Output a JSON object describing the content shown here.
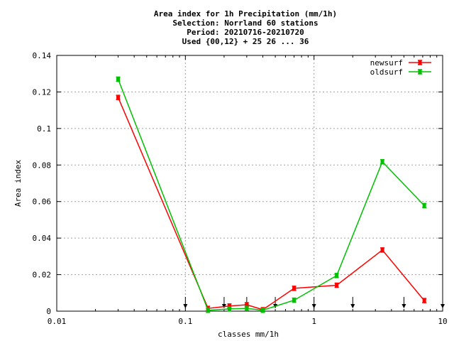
{
  "chart_data": {
    "type": "line",
    "title_lines": [
      "Area index  for 1h Precipitation (mm/1h)",
      "Selection: Norrland     60 stations",
      "Period: 20210716-20210720",
      "Used {00,12} + 25 26 ... 36"
    ],
    "xlabel": "classes mm/1h",
    "ylabel": "Area index",
    "x_scale": "log",
    "xlim": [
      0.01,
      10
    ],
    "ylim": [
      0,
      0.14
    ],
    "x_ticks": [
      0.01,
      0.1,
      1,
      10
    ],
    "x_tick_labels": [
      "0.01",
      "0.1",
      "1",
      "10"
    ],
    "y_ticks": [
      0,
      0.02,
      0.04,
      0.06,
      0.08,
      0.1,
      0.12,
      0.14
    ],
    "y_tick_labels": [
      "0",
      "0.02",
      "0.04",
      "0.06",
      "0.08",
      "0.1",
      "0.12",
      "0.14"
    ],
    "grid": true,
    "legend_position": "top-right",
    "class_arrows": [
      0.1,
      0.2,
      0.3,
      0.5,
      1,
      2,
      5,
      10
    ],
    "series": [
      {
        "name": "newsurf",
        "color": "#ff0000",
        "x": [
          0.03,
          0.15,
          0.22,
          0.3,
          0.4,
          0.7,
          1.5,
          3.4,
          7.2
        ],
        "y": [
          0.117,
          0.0015,
          0.0028,
          0.0035,
          0.0008,
          0.0125,
          0.0142,
          0.0335,
          0.0058
        ]
      },
      {
        "name": "oldsurf",
        "color": "#00c000",
        "x": [
          0.03,
          0.15,
          0.22,
          0.3,
          0.4,
          0.7,
          1.5,
          3.4,
          7.2
        ],
        "y": [
          0.127,
          0.0005,
          0.0012,
          0.0015,
          0.0005,
          0.006,
          0.0195,
          0.0818,
          0.0578
        ]
      }
    ]
  }
}
